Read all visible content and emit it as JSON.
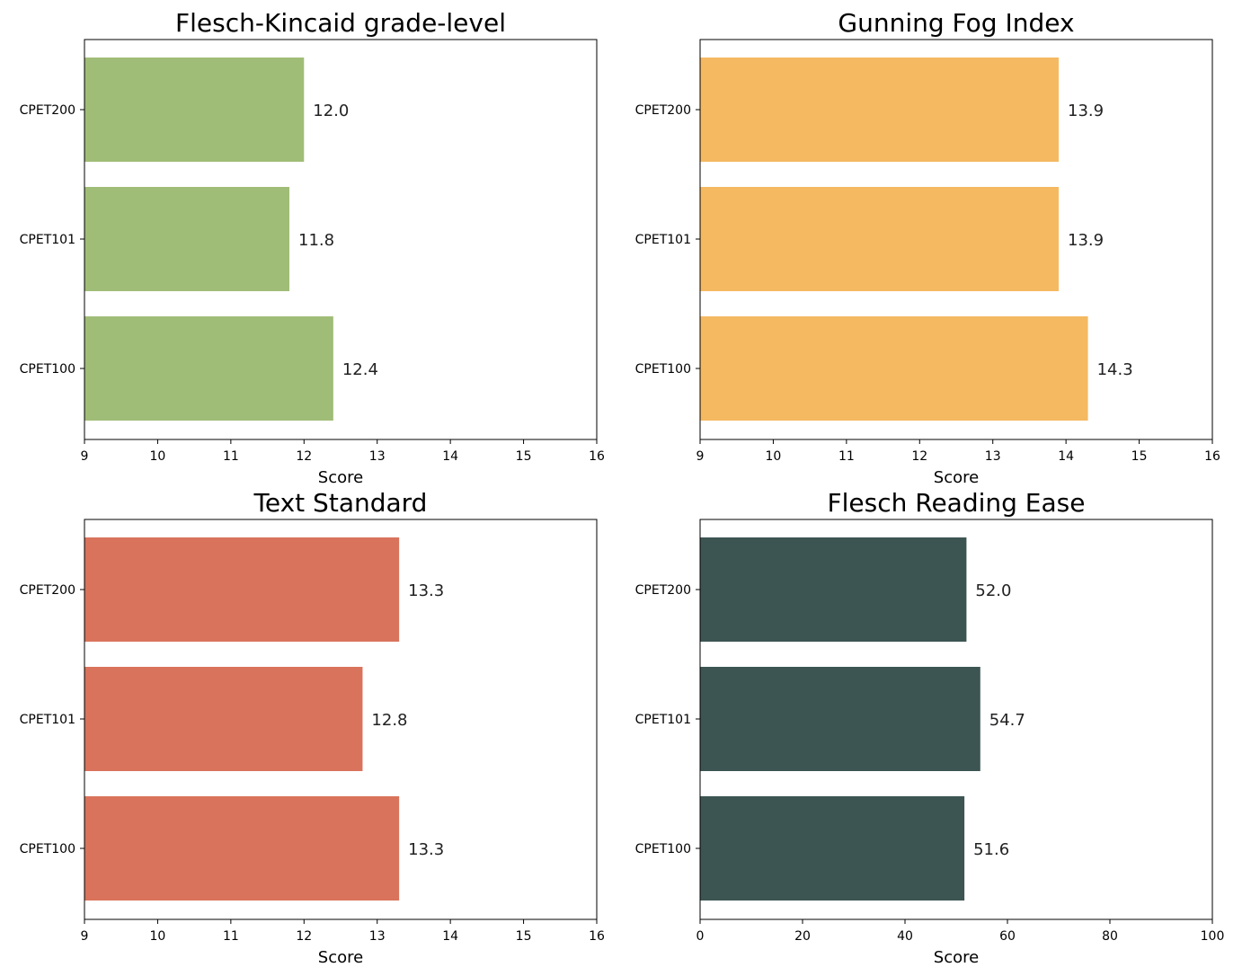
{
  "chart_data": [
    {
      "type": "bar",
      "orientation": "horizontal",
      "title": "Flesch-Kincaid grade-level",
      "xlabel": "Score",
      "ylabel": "",
      "categories": [
        "CPET200",
        "CPET101",
        "CPET100"
      ],
      "values": [
        12.0,
        11.8,
        12.4
      ],
      "value_labels": [
        "12.0",
        "11.8",
        "12.4"
      ],
      "xlim": [
        9,
        16
      ],
      "xticks": [
        9,
        10,
        11,
        12,
        13,
        14,
        15,
        16
      ],
      "color": "#a0bd77",
      "grid": false
    },
    {
      "type": "bar",
      "orientation": "horizontal",
      "title": "Gunning Fog Index",
      "xlabel": "Score",
      "ylabel": "",
      "categories": [
        "CPET200",
        "CPET101",
        "CPET100"
      ],
      "values": [
        13.9,
        13.9,
        14.3
      ],
      "value_labels": [
        "13.9",
        "13.9",
        "14.3"
      ],
      "xlim": [
        9,
        16
      ],
      "xticks": [
        9,
        10,
        11,
        12,
        13,
        14,
        15,
        16
      ],
      "color": "#f5b962",
      "grid": false
    },
    {
      "type": "bar",
      "orientation": "horizontal",
      "title": "Text Standard",
      "xlabel": "Score",
      "ylabel": "",
      "categories": [
        "CPET200",
        "CPET101",
        "CPET100"
      ],
      "values": [
        13.3,
        12.8,
        13.3
      ],
      "value_labels": [
        "13.3",
        "12.8",
        "13.3"
      ],
      "xlim": [
        9,
        16
      ],
      "xticks": [
        9,
        10,
        11,
        12,
        13,
        14,
        15,
        16
      ],
      "color": "#d9735c",
      "grid": false
    },
    {
      "type": "bar",
      "orientation": "horizontal",
      "title": "Flesch Reading Ease",
      "xlabel": "Score",
      "ylabel": "",
      "categories": [
        "CPET200",
        "CPET101",
        "CPET100"
      ],
      "values": [
        52.0,
        54.7,
        51.6
      ],
      "value_labels": [
        "52.0",
        "54.7",
        "51.6"
      ],
      "xlim": [
        0,
        100
      ],
      "xticks": [
        0,
        20,
        40,
        60,
        80,
        100
      ],
      "color": "#3c5552",
      "grid": false
    }
  ]
}
